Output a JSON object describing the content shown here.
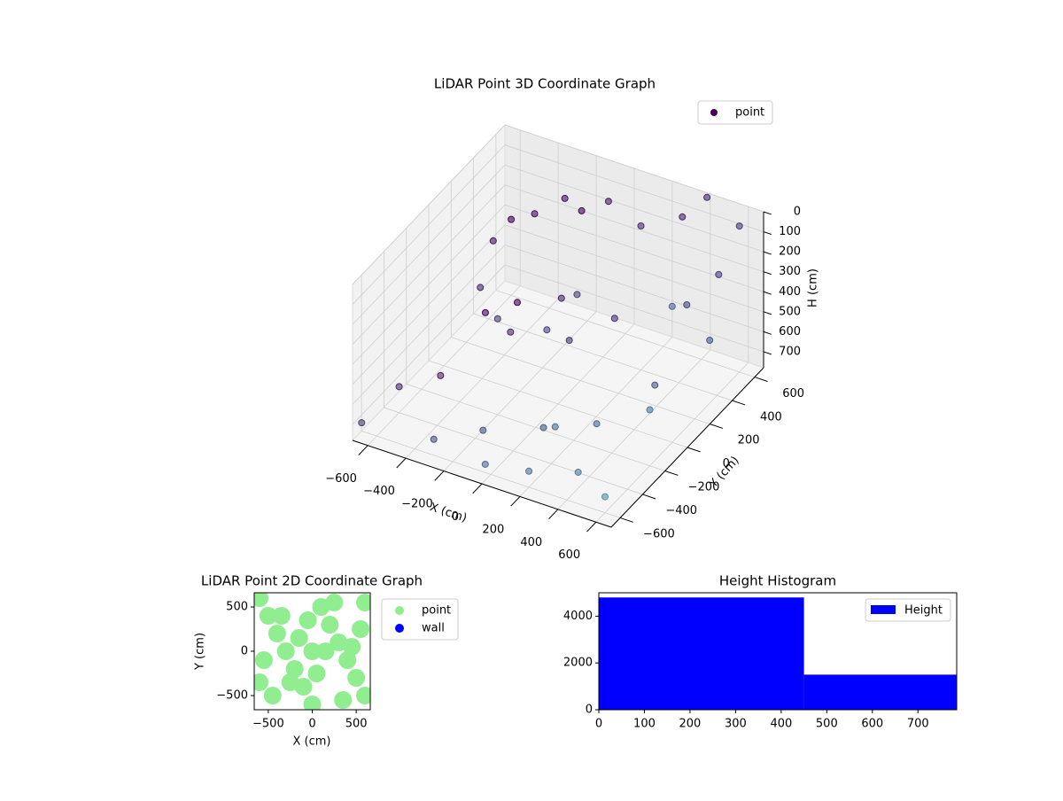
{
  "chart_data": [
    {
      "type": "scatter3d",
      "title": "LiDAR Point 3D Coordinate Graph",
      "xlabel": "X (cm)",
      "ylabel": "Y (cm)",
      "zlabel": "H (cm)",
      "xlim": [
        -680,
        680
      ],
      "ylim": [
        -680,
        680
      ],
      "zlim": [
        0,
        780
      ],
      "z_inverted": true,
      "xticks": [
        {
          "value": -600,
          "label": "−600"
        },
        {
          "value": -400,
          "label": "−400"
        },
        {
          "value": -200,
          "label": "−200"
        },
        0,
        200,
        400,
        600
      ],
      "yticks": [
        {
          "value": -600,
          "label": "−600"
        },
        {
          "value": -400,
          "label": "−400"
        },
        {
          "value": -200,
          "label": "−200"
        },
        0,
        200,
        400,
        600
      ],
      "zticks": [
        0,
        100,
        200,
        300,
        400,
        500,
        600,
        700
      ],
      "grid": true,
      "legend": "upper right",
      "cmap": "viridis",
      "series": [
        {
          "name": "point",
          "color": "#440154",
          "x": [
            -300,
            -200,
            0,
            200,
            -400,
            -350,
            -200,
            0,
            100,
            -100,
            150,
            -250,
            0,
            -600,
            -500,
            400,
            600,
            500,
            600,
            200,
            -100,
            300,
            -600,
            450,
            -300,
            600,
            -500,
            100,
            350,
            -200,
            550,
            250,
            -450,
            0,
            600,
            400,
            -650,
            650
          ],
          "y": [
            300,
            400,
            450,
            400,
            100,
            -100,
            -200,
            -100,
            0,
            200,
            250,
            0,
            100,
            -400,
            200,
            -500,
            600,
            300,
            -200,
            -600,
            -500,
            600,
            600,
            100,
            -600,
            0,
            -200,
            -300,
            -250,
            550,
            500,
            -450,
            400,
            -650,
            -600,
            650,
            -650,
            250
          ],
          "z": [
            100,
            50,
            30,
            60,
            150,
            250,
            300,
            350,
            200,
            400,
            450,
            500,
            520,
            650,
            600,
            700,
            50,
            300,
            500,
            700,
            650,
            100,
            400,
            600,
            700,
            100,
            680,
            690,
            620,
            200,
            250,
            550,
            650,
            700,
            700,
            0,
            700,
            400
          ]
        }
      ]
    },
    {
      "type": "scatter",
      "title": "LiDAR Point 2D Coordinate Graph",
      "xlabel": "X (cm)",
      "ylabel": "Y (cm)",
      "xlim": [
        -660,
        660
      ],
      "ylim": [
        -660,
        660
      ],
      "xticks": [
        {
          "value": -500,
          "label": "−500"
        },
        0,
        500
      ],
      "yticks": [
        {
          "value": -500,
          "label": "−500"
        },
        0,
        500
      ],
      "legend": "outside right",
      "series": [
        {
          "name": "point",
          "color": "#90ee90",
          "x": [
            -600,
            -500,
            -400,
            -300,
            -200,
            -100,
            0,
            100,
            200,
            300,
            400,
            500,
            600,
            -550,
            -350,
            -150,
            50,
            250,
            450,
            -450,
            -250,
            -50,
            150,
            350,
            550,
            -600,
            600,
            0
          ],
          "y": [
            600,
            400,
            200,
            0,
            -200,
            -400,
            -600,
            500,
            300,
            100,
            -100,
            -300,
            -500,
            -100,
            400,
            150,
            -250,
            550,
            50,
            -500,
            -350,
            350,
            0,
            -550,
            250,
            -350,
            550,
            0
          ]
        },
        {
          "name": "wall",
          "color": "#0000ff",
          "x": [],
          "y": []
        }
      ]
    },
    {
      "type": "histogram",
      "title": "Height Histogram",
      "bins": [
        0,
        450,
        900
      ],
      "values": [
        4800,
        1500
      ],
      "series_name": "Height",
      "color": "#0000ff",
      "xlim": [
        0,
        785
      ],
      "ylim": [
        0,
        5000
      ],
      "xticks": [
        0,
        100,
        200,
        300,
        400,
        500,
        600,
        700
      ],
      "yticks": [
        0,
        2000,
        4000
      ],
      "legend": "upper right"
    }
  ]
}
